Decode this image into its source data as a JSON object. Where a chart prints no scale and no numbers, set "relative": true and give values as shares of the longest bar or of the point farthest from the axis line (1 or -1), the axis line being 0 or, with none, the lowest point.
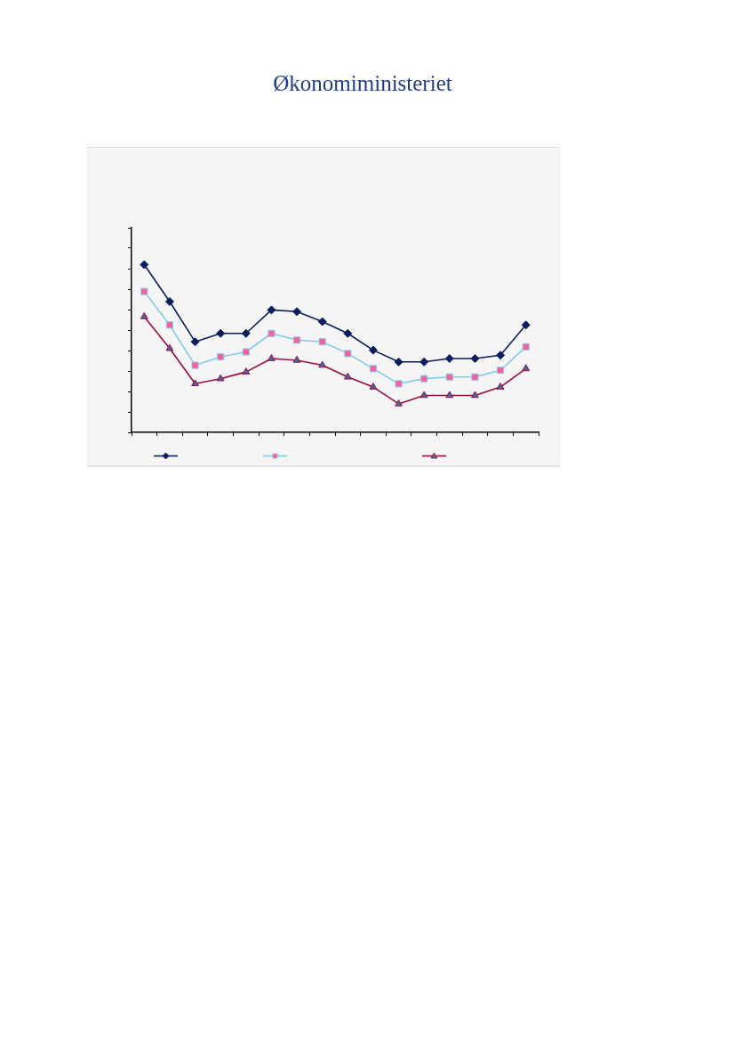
{
  "chart_data": {
    "type": "line",
    "relative": true,
    "annotations": [
      "Økonomiministeriet"
    ],
    "categories": [
      null,
      null,
      null,
      null,
      null,
      null,
      null,
      null,
      null,
      null,
      null,
      null,
      null,
      null,
      null,
      null
    ],
    "series": [
      {
        "color": "#0b1d5c",
        "marker": "diamond",
        "values": [
          1,
          0.78,
          0.54,
          0.59,
          0.59,
          0.73,
          0.72,
          0.66,
          0.59,
          0.49,
          0.42,
          0.42,
          0.44,
          0.44,
          0.46,
          0.64
        ]
      },
      {
        "color": "#7fcbe6",
        "marker": "square",
        "values": [
          0.84,
          0.64,
          0.4,
          0.45,
          0.48,
          0.59,
          0.55,
          0.54,
          0.47,
          0.38,
          0.29,
          0.32,
          0.33,
          0.33,
          0.37,
          0.51
        ]
      },
      {
        "color": "#9e0b3b",
        "marker": "triangle",
        "values": [
          0.69,
          0.5,
          0.29,
          0.32,
          0.36,
          0.44,
          0.43,
          0.4,
          0.33,
          0.27,
          0.17,
          0.22,
          0.22,
          0.22,
          0.27,
          0.38
        ]
      }
    ]
  }
}
